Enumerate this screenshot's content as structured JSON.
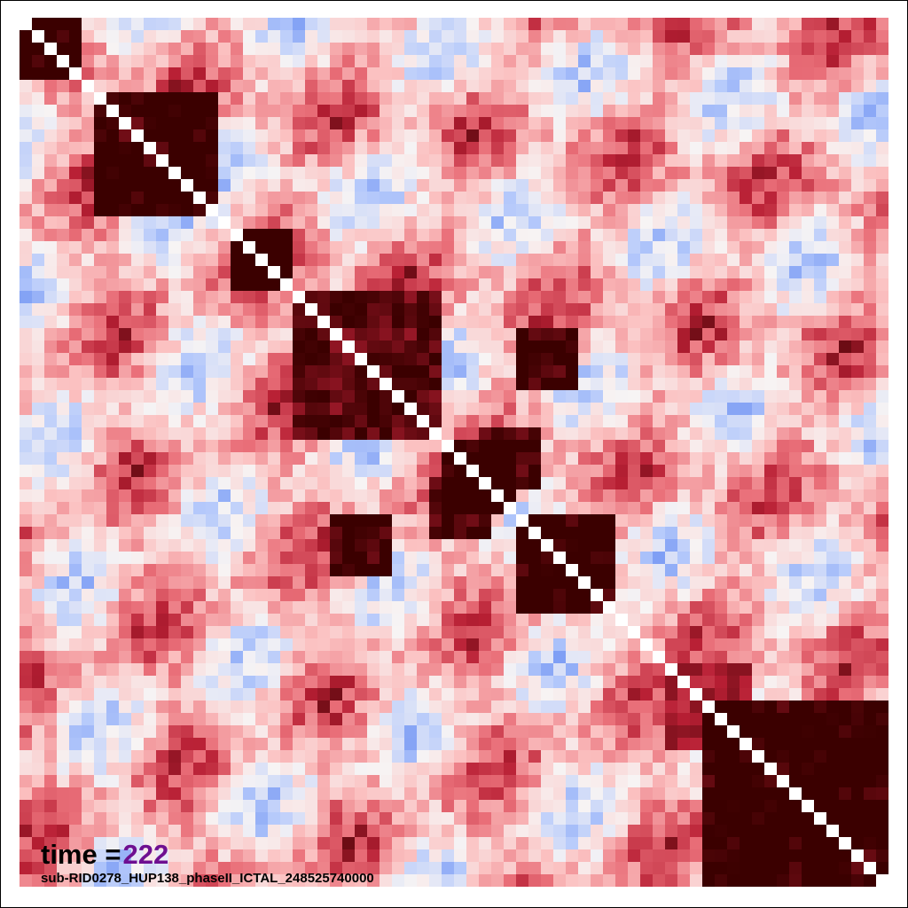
{
  "chart_data": {
    "type": "heatmap",
    "matrix_size": 70,
    "grid": false,
    "colorscale": [
      "#5a82f0",
      "#b5c9fb",
      "#f7f4f4",
      "#fbc0c0",
      "#e96e78",
      "#b81f34",
      "#3b0000"
    ],
    "blocks": [
      {
        "start": 0,
        "end": 5,
        "strength": 0.95
      },
      {
        "start": 6,
        "end": 16,
        "strength": 0.9
      },
      {
        "start": 17,
        "end": 22,
        "strength": 0.95
      },
      {
        "start": 22,
        "end": 34,
        "strength": 0.8
      },
      {
        "start": 34,
        "end": 40,
        "strength": 0.9
      },
      {
        "start": 40,
        "end": 48,
        "strength": 0.92
      },
      {
        "start": 52,
        "end": 59,
        "strength": 0.6
      },
      {
        "start": 55,
        "end": 70,
        "strength": 0.9
      }
    ],
    "offdiag": [
      {
        "r": 25,
        "c": 40,
        "h": 5,
        "w": 5,
        "strength": 0.9
      },
      {
        "r": 33,
        "c": 37,
        "h": 5,
        "w": 5,
        "strength": 0.9
      },
      {
        "r": 6,
        "c": 11,
        "h": 5,
        "w": 4,
        "strength": 0.9
      },
      {
        "r": 57,
        "c": 62,
        "h": 9,
        "w": 8,
        "strength": 0.9
      }
    ]
  },
  "time_label": "time =",
  "time_value": "222",
  "subtitle": "sub-RID0278_HUP138_phaseII_ICTAL_248525740000"
}
